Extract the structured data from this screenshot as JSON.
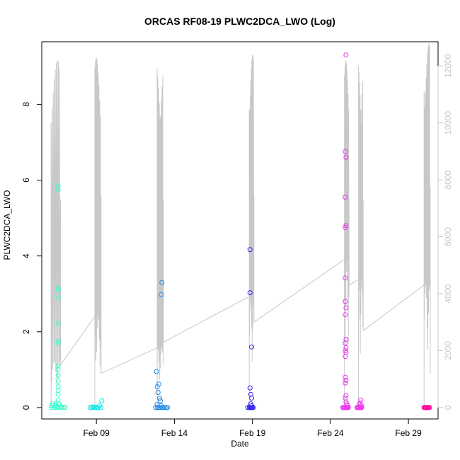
{
  "chart_data": {
    "type": "scatter",
    "title": "ORCAS RF08-19 PLWC2DCA_LWO (Log)",
    "xlabel": "Date",
    "ylabel": "PLWC2DCA_LWO",
    "x_ticks": [
      "Feb 09",
      "Feb 14",
      "Feb 19",
      "Feb 24",
      "Feb 29"
    ],
    "x_tick_days": [
      9,
      14,
      19,
      24,
      29
    ],
    "xlim_days": [
      5.5,
      30.9
    ],
    "y_ticks": [
      0,
      2,
      4,
      6,
      8
    ],
    "ylim": [
      -0.3,
      9.65
    ],
    "y2_ticks": [
      0,
      2000,
      4000,
      6000,
      8000,
      10000,
      12000
    ],
    "y2lim": [
      -400,
      12850
    ],
    "grid": false,
    "series": [
      {
        "color": "#33ffcc",
        "points": [
          [
            6.1,
            0
          ],
          [
            6.15,
            0.05
          ],
          [
            6.2,
            0.1
          ],
          [
            6.3,
            0
          ],
          [
            6.35,
            0.05
          ],
          [
            6.4,
            0.1
          ],
          [
            6.45,
            0
          ],
          [
            6.5,
            0.02
          ],
          [
            6.55,
            5.85
          ],
          [
            6.55,
            5.75
          ],
          [
            6.55,
            3.15
          ],
          [
            6.55,
            3.1
          ],
          [
            6.55,
            2.9
          ],
          [
            6.55,
            2.22
          ],
          [
            6.55,
            1.75
          ],
          [
            6.55,
            1.7
          ],
          [
            6.55,
            1.1
          ],
          [
            6.55,
            1.0
          ],
          [
            6.55,
            0.85
          ],
          [
            6.55,
            0.7
          ],
          [
            6.55,
            0.55
          ],
          [
            6.55,
            0.45
          ],
          [
            6.55,
            0.35
          ],
          [
            6.55,
            0.2
          ],
          [
            6.6,
            0.1
          ],
          [
            6.65,
            0
          ],
          [
            6.7,
            0.05
          ],
          [
            6.75,
            0
          ],
          [
            6.8,
            0
          ],
          [
            6.9,
            0
          ],
          [
            7.0,
            0
          ]
        ]
      },
      {
        "color": "#00e6e6",
        "points": [
          [
            8.6,
            0
          ],
          [
            8.7,
            0
          ],
          [
            8.8,
            0.02
          ],
          [
            8.9,
            0
          ],
          [
            9.0,
            0
          ],
          [
            9.1,
            0
          ],
          [
            9.2,
            0.05
          ],
          [
            9.3,
            0
          ],
          [
            9.35,
            0.18
          ]
        ]
      },
      {
        "color": "#1f88e6",
        "points": [
          [
            12.8,
            0
          ],
          [
            12.9,
            0
          ],
          [
            13.0,
            0
          ],
          [
            13.1,
            0
          ],
          [
            13.2,
            0
          ],
          [
            13.3,
            0
          ],
          [
            13.4,
            0
          ],
          [
            13.5,
            0
          ],
          [
            13.55,
            0
          ],
          [
            12.85,
            0.95
          ],
          [
            12.9,
            0.55
          ],
          [
            13.0,
            0.62
          ],
          [
            12.95,
            0.4
          ],
          [
            13.05,
            0.25
          ],
          [
            13.1,
            0.18
          ],
          [
            12.9,
            0.08
          ],
          [
            13.15,
            0.05
          ],
          [
            13.2,
            3.3
          ],
          [
            13.15,
            2.98
          ]
        ]
      },
      {
        "color": "#3322ee",
        "points": [
          [
            18.7,
            0
          ],
          [
            18.8,
            0
          ],
          [
            18.85,
            0
          ],
          [
            18.9,
            0
          ],
          [
            18.95,
            0
          ],
          [
            19.0,
            0
          ],
          [
            19.05,
            0
          ],
          [
            18.85,
            4.17
          ],
          [
            18.85,
            3.03
          ],
          [
            18.85,
            0.52
          ],
          [
            18.9,
            0.35
          ],
          [
            18.95,
            0.25
          ],
          [
            18.9,
            0.1
          ],
          [
            18.95,
            0.05
          ],
          [
            18.95,
            1.6
          ]
        ]
      },
      {
        "color": "#ee33ee",
        "points": [
          [
            24.8,
            0
          ],
          [
            24.85,
            0
          ],
          [
            24.9,
            0
          ],
          [
            24.95,
            0
          ],
          [
            25.0,
            0
          ],
          [
            25.05,
            0
          ],
          [
            25.1,
            0
          ],
          [
            25.15,
            0
          ],
          [
            25.0,
            9.3
          ],
          [
            24.95,
            6.75
          ],
          [
            25.0,
            6.6
          ],
          [
            24.95,
            5.55
          ],
          [
            25.0,
            4.8
          ],
          [
            24.95,
            4.75
          ],
          [
            24.95,
            3.42
          ],
          [
            24.95,
            2.8
          ],
          [
            25.0,
            2.63
          ],
          [
            24.95,
            2.45
          ],
          [
            25.0,
            1.8
          ],
          [
            24.95,
            1.7
          ],
          [
            25.0,
            1.58
          ],
          [
            24.95,
            1.5
          ],
          [
            25.0,
            1.45
          ],
          [
            24.95,
            1.35
          ],
          [
            24.95,
            0.8
          ],
          [
            25.0,
            0.72
          ],
          [
            24.95,
            0.65
          ],
          [
            25.0,
            0.32
          ],
          [
            24.95,
            0.25
          ],
          [
            25.0,
            0.15
          ],
          [
            25.05,
            0.1
          ],
          [
            25.1,
            0.05
          ],
          [
            25.7,
            0
          ],
          [
            25.75,
            0
          ],
          [
            25.8,
            0
          ],
          [
            25.85,
            0
          ],
          [
            25.9,
            0
          ],
          [
            25.95,
            0
          ],
          [
            26.0,
            0
          ],
          [
            25.95,
            0.2
          ],
          [
            25.9,
            0.12
          ],
          [
            25.85,
            0.08
          ],
          [
            26.0,
            0.05
          ]
        ]
      },
      {
        "color": "#ff0099",
        "points": [
          [
            30.0,
            0
          ],
          [
            30.05,
            0
          ],
          [
            30.1,
            0
          ],
          [
            30.15,
            0
          ],
          [
            30.2,
            0
          ],
          [
            30.25,
            0
          ],
          [
            30.3,
            0
          ],
          [
            30.35,
            0
          ]
        ]
      }
    ],
    "altitude_trace": {
      "color": "#c8c8c8",
      "flights": [
        {
          "start": 6.1,
          "end": 6.7,
          "max": 12200,
          "dwell": 1600,
          "end_alt": 1500
        },
        {
          "start": 8.9,
          "end": 9.3,
          "max": 12300,
          "dwell": 3200,
          "end_alt": 1200
        },
        {
          "start": 12.9,
          "end": 13.3,
          "max": 12100,
          "dwell": 2100,
          "end_alt": 2300
        },
        {
          "start": 18.8,
          "end": 19.1,
          "max": 12400,
          "dwell": 3900,
          "end_alt": 3000
        },
        {
          "start": 24.9,
          "end": 25.2,
          "max": 12200,
          "dwell": 5200,
          "end_alt": 4300
        },
        {
          "start": 25.8,
          "end": 26.1,
          "max": 12100,
          "dwell": 4500,
          "end_alt": 2700
        },
        {
          "start": 30.0,
          "end": 30.4,
          "max": 12800,
          "dwell": 4300,
          "end_alt": 1200
        }
      ]
    }
  }
}
